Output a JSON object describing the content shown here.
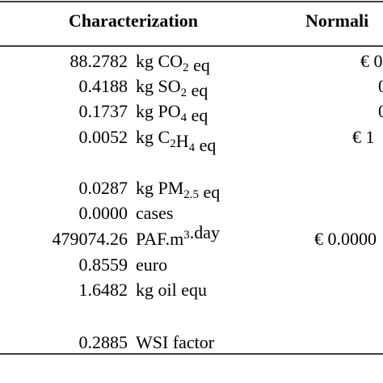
{
  "table": {
    "header": [
      "Characterization",
      "Normali"
    ],
    "rows": [
      {
        "value": "88.2782",
        "unit": [
          {
            "t": "kg CO"
          },
          {
            "sub": "2"
          },
          {
            "t": " eq"
          }
        ],
        "norm": "€ 0"
      },
      {
        "value": "0.4188",
        "unit": [
          {
            "t": "kg SO"
          },
          {
            "sub": "2"
          },
          {
            "t": " eq"
          }
        ],
        "norm": "0"
      },
      {
        "value": "0.1737",
        "unit": [
          {
            "t": "kg PO"
          },
          {
            "sub": "4"
          },
          {
            "t": " eq"
          }
        ],
        "norm": "0"
      },
      {
        "value": "0.0052",
        "unit": [
          {
            "t": "kg C"
          },
          {
            "sub": "2"
          },
          {
            "t": "H"
          },
          {
            "sub": "4"
          },
          {
            "t": " eq"
          }
        ],
        "norm": "€ 1"
      },
      {
        "value": "0.0287",
        "unit": [
          {
            "t": "kg PM"
          },
          {
            "sub": "2.5"
          },
          {
            "t": " eq"
          }
        ]
      },
      {
        "value": "0.0000",
        "unit": [
          {
            "t": "cases"
          }
        ]
      },
      {
        "value": "479074.26",
        "unit": [
          {
            "t": "PAF.m"
          },
          {
            "sup": "3"
          },
          {
            "t": ".day"
          }
        ],
        "norm": "€ 0.0000"
      },
      {
        "value": "0.8559",
        "unit": [
          {
            "t": "euro"
          }
        ]
      },
      {
        "value": "1.6482",
        "unit": [
          {
            "t": "kg oil equ"
          }
        ]
      },
      {
        "value": "0.2885",
        "unit": [
          {
            "t": "WSI factor"
          }
        ]
      }
    ]
  }
}
